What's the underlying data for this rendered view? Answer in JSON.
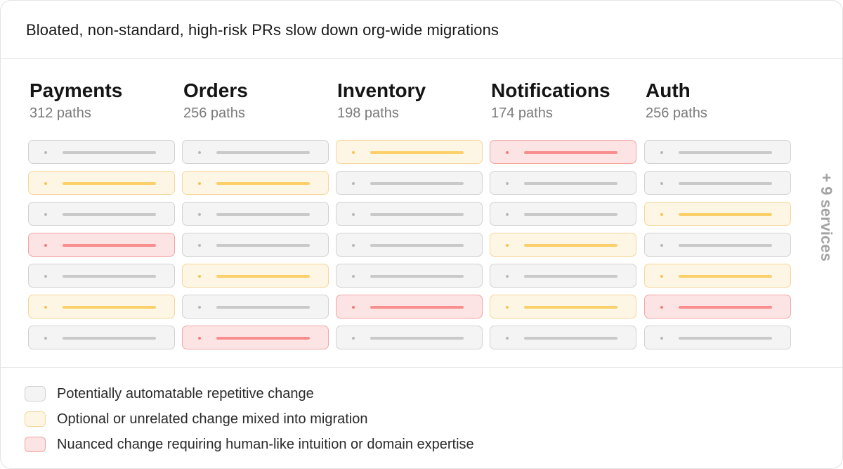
{
  "header": {
    "title": "Bloated, non-standard, high-risk PRs slow down org-wide migrations"
  },
  "colors": {
    "gray": "#f4f4f4",
    "yellow": "#fef6e4",
    "red": "#fde4e4"
  },
  "services": [
    {
      "name": "Payments",
      "paths": "312 paths",
      "rows": [
        "gray",
        "yellow",
        "gray",
        "red",
        "gray",
        "yellow",
        "gray"
      ]
    },
    {
      "name": "Orders",
      "paths": "256 paths",
      "rows": [
        "gray",
        "yellow",
        "gray",
        "gray",
        "yellow",
        "gray",
        "red"
      ]
    },
    {
      "name": "Inventory",
      "paths": "198 paths",
      "rows": [
        "yellow",
        "gray",
        "gray",
        "gray",
        "gray",
        "red",
        "gray"
      ]
    },
    {
      "name": "Notifications",
      "paths": "174 paths",
      "rows": [
        "red",
        "gray",
        "gray",
        "yellow",
        "gray",
        "yellow",
        "gray"
      ]
    },
    {
      "name": "Auth",
      "paths": "256 paths",
      "rows": [
        "gray",
        "gray",
        "yellow",
        "gray",
        "yellow",
        "red",
        "gray"
      ]
    }
  ],
  "more_services": "+ 9 services",
  "legend": [
    {
      "type": "gray",
      "label": "Potentially automatable repetitive change"
    },
    {
      "type": "yellow",
      "label": "Optional or unrelated change mixed into migration"
    },
    {
      "type": "red",
      "label": "Nuanced change requiring human-like intuition or domain expertise"
    }
  ]
}
